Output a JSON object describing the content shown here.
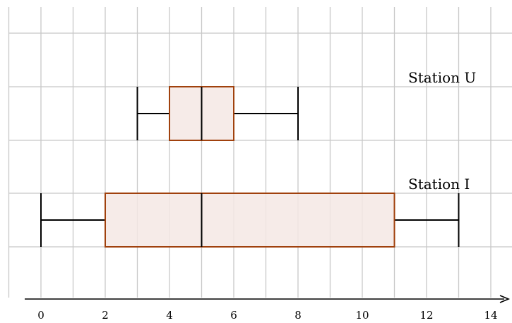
{
  "chart_data": {
    "type": "boxplot",
    "orientation": "horizontal",
    "title": "",
    "xlabel": "",
    "ylabel": "",
    "xlim": [
      -1,
      14.5
    ],
    "x_ticks": [
      0,
      2,
      4,
      6,
      8,
      10,
      12,
      14
    ],
    "grid": true,
    "series": [
      {
        "name": "Station U",
        "min": 3,
        "q1": 4,
        "median": 5,
        "q3": 6,
        "max": 8
      },
      {
        "name": "Station I",
        "min": 0,
        "q1": 2,
        "median": 5,
        "q3": 11,
        "max": 13
      }
    ],
    "colors": {
      "box_fill": "#f5e8e4",
      "box_stroke": "#a0410d",
      "grid": "#c8c8c8",
      "axis": "#000000"
    }
  }
}
